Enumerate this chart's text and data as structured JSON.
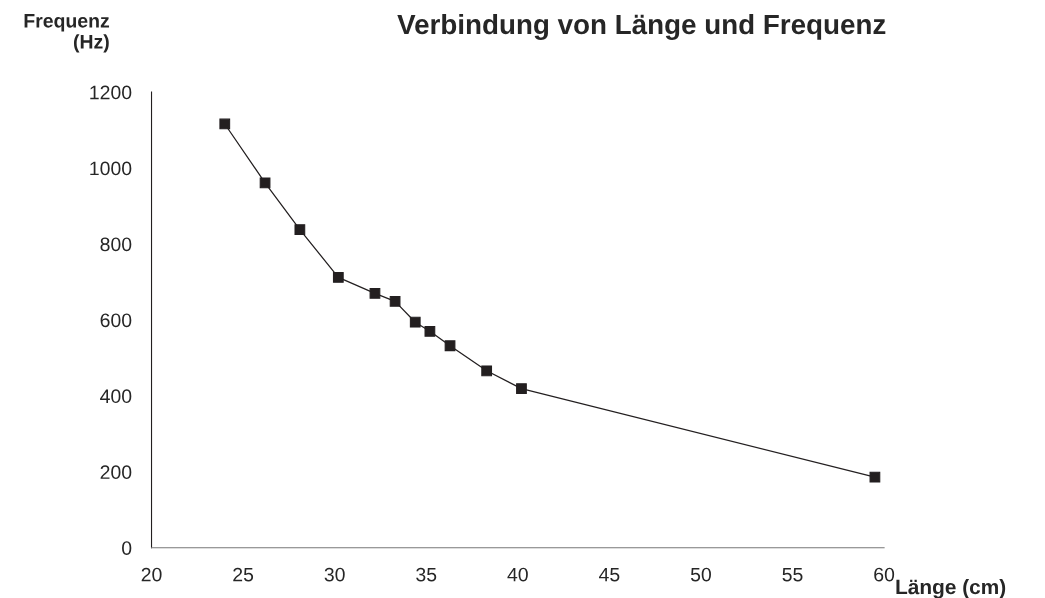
{
  "chart_data": {
    "type": "line",
    "title": "Verbindung von Länge und Frequenz",
    "xlabel": "Länge (cm)",
    "ylabel": "Frequenz\n(Hz)",
    "x": [
      24.0,
      26.2,
      28.1,
      30.2,
      32.2,
      33.3,
      34.4,
      35.2,
      36.3,
      38.3,
      40.2,
      59.5
    ],
    "series": [
      {
        "color": "#231f20",
        "values": [
          1116,
          961,
          838,
          712,
          670,
          649,
          594,
          570,
          532,
          466,
          419,
          186
        ]
      }
    ],
    "xlim": [
      20,
      60
    ],
    "xticks": [
      20,
      25,
      30,
      35,
      40,
      45,
      50,
      55,
      60
    ],
    "ylim": [
      0,
      1200
    ],
    "yticks": [
      0,
      200,
      400,
      600,
      800,
      1000,
      1200
    ],
    "marker": "square",
    "line_style": "solid",
    "grid": false,
    "legend": false
  }
}
